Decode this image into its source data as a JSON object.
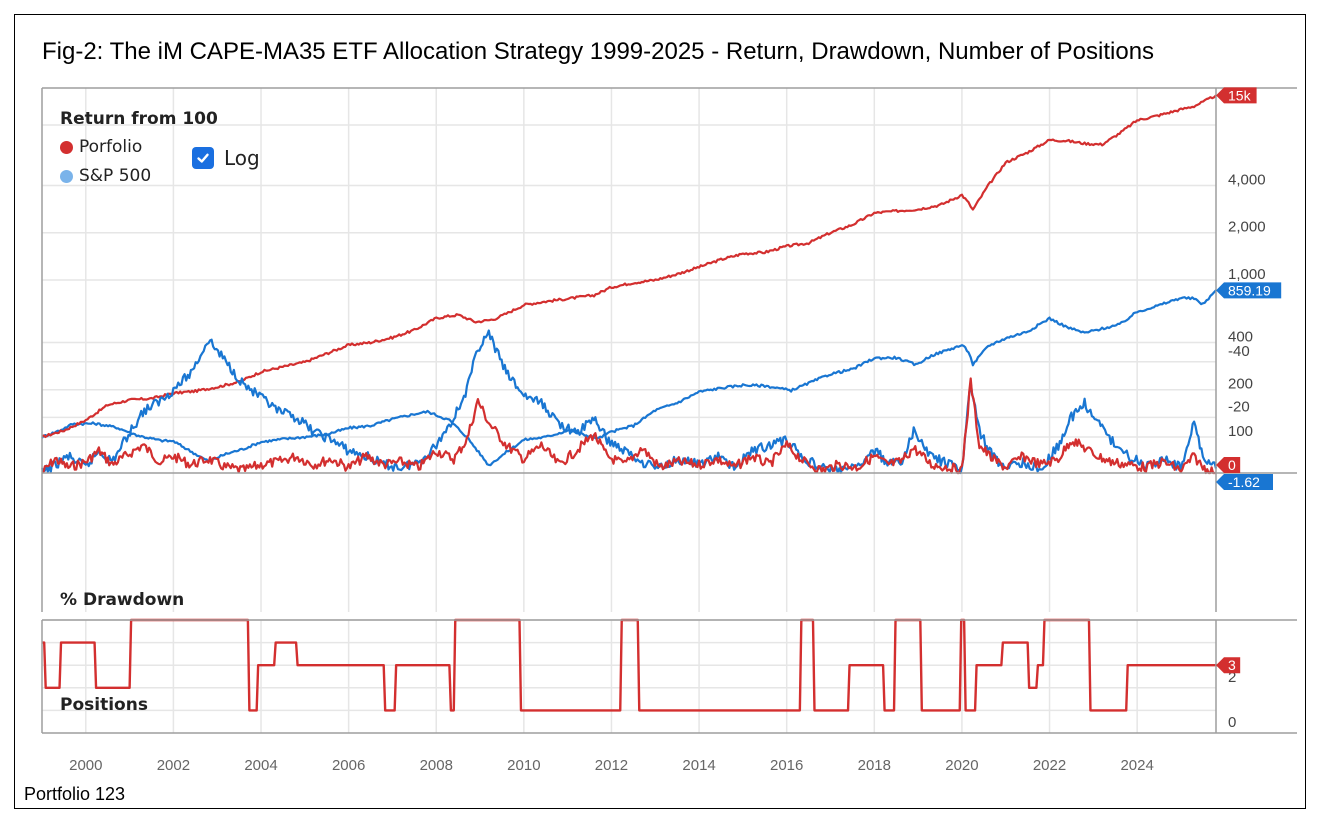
{
  "title": "Fig-2:  The iM CAPE-MA35 ETF Allocation Strategy 1999-2025 - Return, Drawdown, Number of Positions",
  "footer": "Portfolio 123",
  "legend": {
    "title": "Return from 100",
    "items": [
      {
        "label": "Porfolio",
        "color": "#d32f2f"
      },
      {
        "label": "S&P 500",
        "color": "#7ab3ea"
      }
    ],
    "log_toggle": {
      "label": "Log",
      "checked": true
    }
  },
  "colors": {
    "portfolio": "#d32f2f",
    "benchmark": "#1976d2",
    "grid": "#e6e6e6",
    "axis": "#9e9e9e"
  },
  "chart_data": [
    {
      "type": "line",
      "panel": "return",
      "title": "Return from 100",
      "yscale": "log",
      "ylim": [
        85,
        16000
      ],
      "xlim": [
        1999.0,
        2025.8
      ],
      "yticks": [
        100,
        200,
        400,
        1000,
        2000,
        4000
      ],
      "ytick_labels": [
        "100",
        "200",
        "400",
        "1,000",
        "2,000",
        "4,000"
      ],
      "grid": true,
      "legend_position": "top-left",
      "end_labels": [
        {
          "series": "Porfolio",
          "text": "15k"
        },
        {
          "series": "S&P 500",
          "text": "859.19"
        }
      ],
      "series": [
        {
          "name": "Porfolio",
          "x": [
            1999.0,
            1999.5,
            2000.0,
            2000.5,
            2001.0,
            2001.5,
            2002.0,
            2002.5,
            2003.0,
            2003.5,
            2004.0,
            2004.5,
            2005.0,
            2005.5,
            2006.0,
            2006.5,
            2007.0,
            2007.5,
            2008.0,
            2008.5,
            2008.9,
            2009.3,
            2009.6,
            2010.0,
            2010.5,
            2011.0,
            2011.6,
            2012.0,
            2012.5,
            2013.0,
            2013.5,
            2014.0,
            2014.5,
            2015.0,
            2015.5,
            2016.0,
            2016.5,
            2017.0,
            2017.5,
            2018.0,
            2018.5,
            2019.0,
            2019.5,
            2020.0,
            2020.15,
            2020.25,
            2020.6,
            2021.0,
            2021.5,
            2022.0,
            2022.4,
            2022.8,
            2023.2,
            2023.6,
            2024.0,
            2024.5,
            2025.0,
            2025.3,
            2025.5,
            2025.8
          ],
          "values": [
            100,
            110,
            128,
            160,
            172,
            176,
            190,
            196,
            208,
            225,
            260,
            280,
            300,
            340,
            385,
            400,
            430,
            480,
            572,
            600,
            540,
            560,
            610,
            694,
            730,
            760,
            800,
            900,
            960,
            1000,
            1090,
            1210,
            1350,
            1470,
            1500,
            1640,
            1720,
            2000,
            2250,
            2670,
            2750,
            2820,
            3000,
            3480,
            3100,
            2800,
            4000,
            5600,
            6500,
            7800,
            7700,
            7400,
            7300,
            8600,
            10400,
            11200,
            12200,
            12800,
            13600,
            15000
          ]
        },
        {
          "name": "S&P 500",
          "x": [
            1999.0,
            1999.4,
            1999.7,
            2000.2,
            2000.7,
            2001.2,
            2001.7,
            2002.0,
            2002.5,
            2002.8,
            2003.2,
            2003.6,
            2004.0,
            2004.5,
            2005.0,
            2005.5,
            2006.0,
            2006.5,
            2007.0,
            2007.5,
            2007.8,
            2008.3,
            2008.7,
            2009.2,
            2009.6,
            2010.0,
            2010.5,
            2011.0,
            2011.7,
            2012.0,
            2012.5,
            2013.0,
            2013.5,
            2014.0,
            2014.5,
            2015.0,
            2015.5,
            2016.1,
            2016.5,
            2017.0,
            2017.5,
            2018.0,
            2018.5,
            2018.95,
            2019.3,
            2020.0,
            2020.15,
            2020.25,
            2020.6,
            2021.0,
            2021.5,
            2022.0,
            2022.4,
            2022.8,
            2023.2,
            2023.6,
            2024.0,
            2024.5,
            2025.0,
            2025.3,
            2025.5,
            2025.8
          ],
          "values": [
            100,
            110,
            121,
            122,
            115,
            102,
            95,
            94,
            78,
            70,
            78,
            84,
            93,
            97,
            100,
            104,
            114,
            118,
            130,
            140,
            145,
            128,
            100,
            66,
            80,
            96,
            100,
            110,
            98,
            108,
            118,
            148,
            165,
            194,
            205,
            214,
            212,
            198,
            220,
            252,
            270,
            318,
            320,
            288,
            330,
            385,
            350,
            290,
            380,
            426,
            470,
            570,
            500,
            460,
            490,
            520,
            627,
            690,
            770,
            760,
            700,
            859.19
          ]
        }
      ]
    },
    {
      "type": "line",
      "panel": "drawdown",
      "title": "% Drawdown",
      "ylim": [
        -50,
        0
      ],
      "yticks": [
        0,
        -20,
        -40
      ],
      "ytick_labels": [
        "",
        "-20",
        "-40"
      ],
      "grid": true,
      "end_labels": [
        {
          "series": "Porfolio",
          "text": "0"
        },
        {
          "series": "S&P 500",
          "text": "-1.62"
        }
      ],
      "series": [
        {
          "name": "Porfolio",
          "x": [
            1999.0,
            1999.3,
            1999.6,
            2000.0,
            2000.3,
            2000.6,
            2000.9,
            2001.3,
            2001.7,
            2002.0,
            2002.4,
            2002.8,
            2003.2,
            2003.6,
            2004.0,
            2004.4,
            2004.8,
            2005.2,
            2005.6,
            2006.0,
            2006.4,
            2006.8,
            2007.2,
            2007.6,
            2008.0,
            2008.4,
            2008.7,
            2008.95,
            2009.2,
            2009.6,
            2010.0,
            2010.4,
            2010.8,
            2011.2,
            2011.6,
            2011.9,
            2012.3,
            2012.7,
            2013.1,
            2013.5,
            2014.0,
            2014.4,
            2014.8,
            2015.2,
            2015.6,
            2016.0,
            2016.4,
            2016.8,
            2017.2,
            2017.6,
            2018.0,
            2018.3,
            2018.6,
            2018.9,
            2019.3,
            2019.7,
            2020.0,
            2020.2,
            2020.4,
            2020.7,
            2021.0,
            2021.4,
            2021.8,
            2022.2,
            2022.5,
            2022.8,
            2023.1,
            2023.4,
            2023.8,
            2024.2,
            2024.6,
            2025.0,
            2025.3,
            2025.5,
            2025.8
          ],
          "values": [
            0,
            -5,
            -2,
            -4,
            -8,
            -3,
            -6,
            -10,
            -4,
            -6,
            -3,
            -5,
            -2,
            -1,
            -3,
            -4,
            -6,
            -3,
            -5,
            -2,
            -6,
            -3,
            -4,
            -2,
            -8,
            -5,
            -12,
            -26,
            -18,
            -10,
            -5,
            -10,
            -3,
            -8,
            -14,
            -6,
            -3,
            -9,
            -2,
            -4,
            -3,
            -5,
            -2,
            -6,
            -3,
            -10,
            -4,
            -1,
            -3,
            -2,
            -6,
            -3,
            -4,
            -9,
            -3,
            -2,
            -1,
            -33,
            -10,
            -5,
            -2,
            -6,
            -3,
            -5,
            -12,
            -9,
            -6,
            -4,
            -3,
            -2,
            -4,
            -1,
            -6,
            -2,
            0
          ]
        },
        {
          "name": "S&P 500",
          "x": [
            1999.0,
            1999.3,
            1999.6,
            2000.0,
            2000.3,
            2000.6,
            2000.9,
            2001.3,
            2001.7,
            2002.0,
            2002.4,
            2002.8,
            2003.2,
            2003.6,
            2004.0,
            2004.4,
            2004.8,
            2005.2,
            2005.6,
            2006.0,
            2006.4,
            2006.8,
            2007.2,
            2007.6,
            2008.0,
            2008.4,
            2008.7,
            2008.95,
            2009.2,
            2009.6,
            2010.0,
            2010.4,
            2010.8,
            2011.2,
            2011.6,
            2011.9,
            2012.3,
            2012.7,
            2013.1,
            2013.5,
            2014.0,
            2014.4,
            2014.8,
            2015.2,
            2015.6,
            2016.0,
            2016.4,
            2016.8,
            2017.2,
            2017.6,
            2018.0,
            2018.3,
            2018.6,
            2018.9,
            2019.3,
            2019.7,
            2020.0,
            2020.2,
            2020.4,
            2020.7,
            2021.0,
            2021.4,
            2021.8,
            2022.2,
            2022.5,
            2022.8,
            2023.1,
            2023.4,
            2023.8,
            2024.2,
            2024.6,
            2025.0,
            2025.3,
            2025.5,
            2025.8
          ],
          "values": [
            0,
            -3,
            -6,
            -2,
            -8,
            -4,
            -12,
            -22,
            -26,
            -30,
            -36,
            -48,
            -40,
            -32,
            -27,
            -22,
            -20,
            -15,
            -12,
            -8,
            -6,
            -3,
            -2,
            -4,
            -10,
            -20,
            -30,
            -45,
            -50,
            -36,
            -28,
            -25,
            -18,
            -14,
            -20,
            -12,
            -8,
            -4,
            -2,
            -5,
            -3,
            -6,
            -2,
            -8,
            -10,
            -12,
            -5,
            -2,
            -1,
            -2,
            -8,
            -4,
            -3,
            -15,
            -6,
            -3,
            -1,
            -33,
            -15,
            -6,
            -2,
            -4,
            -1,
            -10,
            -20,
            -25,
            -18,
            -12,
            -6,
            -3,
            -5,
            -2,
            -18,
            -6,
            -1.62
          ]
        }
      ]
    },
    {
      "type": "line",
      "step": true,
      "panel": "positions",
      "title": "Positions",
      "ylim": [
        0,
        5
      ],
      "yticks": [
        0,
        2
      ],
      "ytick_labels": [
        "0",
        "2"
      ],
      "grid": true,
      "end_labels": [
        {
          "series": "Positions",
          "text": "3"
        }
      ],
      "series": [
        {
          "name": "Positions",
          "x": [
            1999.0,
            1999.05,
            1999.4,
            2000.2,
            2001.0,
            2003.7,
            2003.9,
            2004.3,
            2004.8,
            2006.8,
            2007.05,
            2008.3,
            2008.4,
            2009.9,
            2012.2,
            2012.6,
            2016.3,
            2016.6,
            2017.4,
            2018.2,
            2018.45,
            2019.05,
            2019.95,
            2020.05,
            2020.3,
            2020.9,
            2021.5,
            2021.7,
            2021.85,
            2022.9,
            2023.75,
            2025.8
          ],
          "values": [
            4,
            2,
            4,
            2,
            5,
            1,
            3,
            4,
            3,
            1,
            3,
            1,
            5,
            1,
            5,
            1,
            5,
            1,
            3,
            1,
            5,
            1,
            5,
            1,
            3,
            4,
            2,
            3,
            5,
            1,
            3,
            3
          ]
        }
      ]
    }
  ],
  "xaxis": {
    "ticks": [
      2000,
      2002,
      2004,
      2006,
      2008,
      2010,
      2012,
      2014,
      2016,
      2018,
      2020,
      2022,
      2024
    ],
    "tick_labels": [
      "2000",
      "2002",
      "2004",
      "2006",
      "2008",
      "2010",
      "2012",
      "2014",
      "2016",
      "2018",
      "2020",
      "2022",
      "2024"
    ]
  }
}
